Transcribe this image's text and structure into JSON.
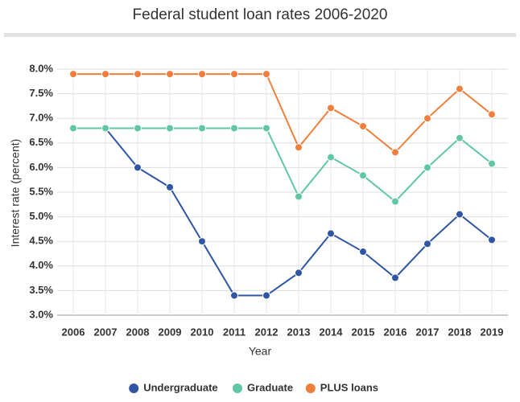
{
  "chart_data": {
    "type": "line",
    "title": "Federal student loan rates 2006-2020",
    "x_label": "Year",
    "y_label": "Interest rate (percent)",
    "categories": [
      "2006",
      "2007",
      "2008",
      "2009",
      "2010",
      "2011",
      "2012",
      "2013",
      "2014",
      "2015",
      "2016",
      "2017",
      "2018",
      "2019"
    ],
    "series": [
      {
        "name": "Undergraduate",
        "color": "#2f55a4",
        "values": [
          6.8,
          6.8,
          6.0,
          5.6,
          4.5,
          3.4,
          3.4,
          3.86,
          4.66,
          4.29,
          3.76,
          4.45,
          5.05,
          4.53
        ]
      },
      {
        "name": "Graduate",
        "color": "#5fc8a3",
        "values": [
          6.8,
          6.8,
          6.8,
          6.8,
          6.8,
          6.8,
          6.8,
          5.41,
          6.21,
          5.84,
          5.31,
          6.0,
          6.6,
          6.08
        ]
      },
      {
        "name": "PLUS loans",
        "color": "#f07f3c",
        "values": [
          7.9,
          7.9,
          7.9,
          7.9,
          7.9,
          7.9,
          7.9,
          6.41,
          7.21,
          6.84,
          6.31,
          7.0,
          7.6,
          7.08
        ]
      }
    ],
    "ylim": [
      3.0,
      8.0
    ],
    "yticks": [
      {
        "value": 3.0,
        "label": "3.0%"
      },
      {
        "value": 3.5,
        "label": "3.5%"
      },
      {
        "value": 4.0,
        "label": "4.0%"
      },
      {
        "value": 4.5,
        "label": "4.5%"
      },
      {
        "value": 5.0,
        "label": "5.0%"
      },
      {
        "value": 5.5,
        "label": "5.5%"
      },
      {
        "value": 6.0,
        "label": "6.0%"
      },
      {
        "value": 6.5,
        "label": "6.5%"
      },
      {
        "value": 7.0,
        "label": "7.0%"
      },
      {
        "value": 7.5,
        "label": "7.5%"
      },
      {
        "value": 8.0,
        "label": "8.0%"
      }
    ],
    "grid": true,
    "legend": "bottom"
  }
}
